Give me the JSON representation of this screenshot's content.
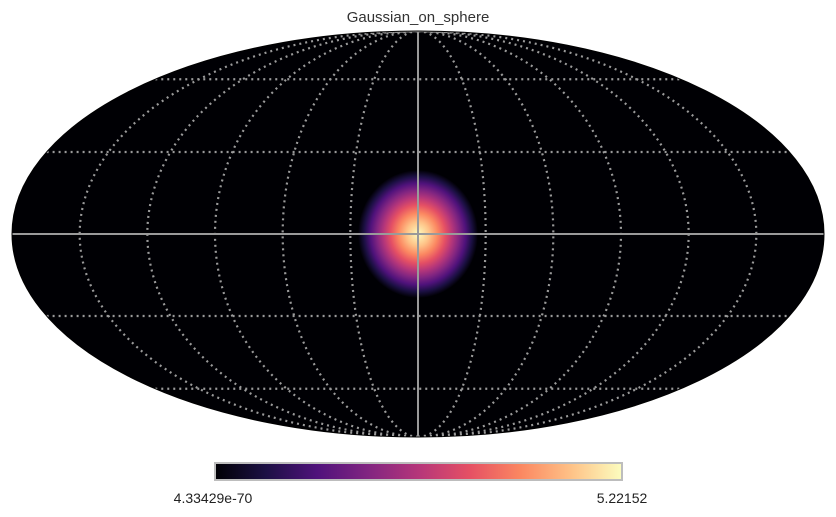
{
  "chart_data": {
    "type": "heatmap",
    "projection": "mollweide",
    "title": "Gaussian_on_sphere",
    "colormap": "magma",
    "colormap_stops": [
      "#000004",
      "#1c1044",
      "#4f127b",
      "#812581",
      "#b5367a",
      "#e55064",
      "#fb8761",
      "#fec287",
      "#fcfdbf"
    ],
    "background_color": "#000004",
    "graticule_color": "#9a9a9a",
    "graticule": {
      "meridians_deg": [
        -150,
        -120,
        -90,
        -60,
        -30,
        0,
        30,
        60,
        90,
        120,
        150
      ],
      "parallels_deg": [
        -60,
        -30,
        0,
        30,
        60
      ],
      "main_axes_solid": true,
      "others_dotted": true
    },
    "gaussian": {
      "center_lon_deg": 0,
      "center_lat_deg": 0,
      "peak_value": 5.22152
    },
    "colorbar": {
      "min_label": "4.33429e-70",
      "max_label": "5.22152",
      "vmin": 4.33429e-70,
      "vmax": 5.22152
    }
  }
}
